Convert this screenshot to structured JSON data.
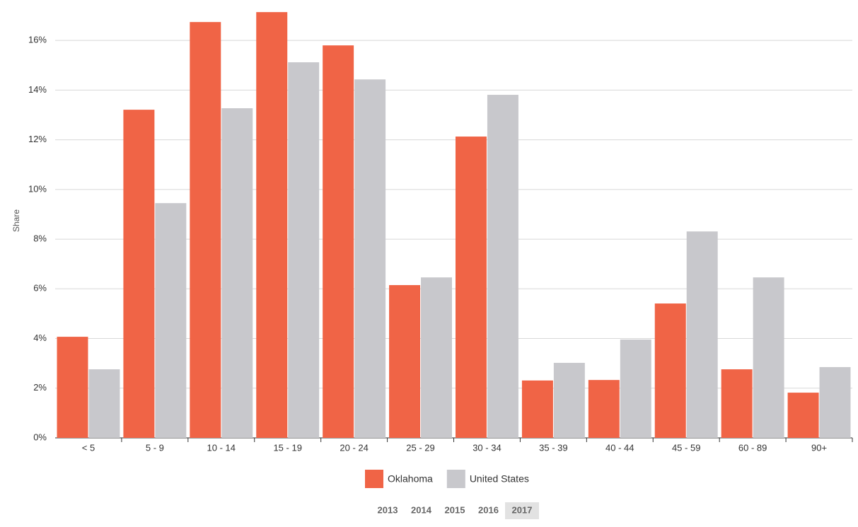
{
  "chart_data": {
    "type": "bar",
    "y_label": "Share",
    "categories": [
      "< 5",
      "5 - 9",
      "10 - 14",
      "15 - 19",
      "20 - 24",
      "25 - 29",
      "30 - 34",
      "35 - 39",
      "40 - 44",
      "45 - 59",
      "60 - 89",
      "90+"
    ],
    "series": [
      {
        "name": "Oklahoma",
        "color": "#f06446",
        "values": [
          4.07,
          13.21,
          16.74,
          17.14,
          15.8,
          6.15,
          12.13,
          2.31,
          2.33,
          5.41,
          2.76,
          1.82
        ]
      },
      {
        "name": "United States",
        "color": "#c8c8cc",
        "values": [
          2.76,
          9.45,
          13.27,
          15.12,
          14.43,
          6.46,
          13.81,
          3.02,
          3.96,
          8.31,
          6.46,
          2.85
        ]
      }
    ],
    "ylim": [
      0,
      17.2
    ],
    "yticks": [
      {
        "value": 0,
        "label": "0%"
      },
      {
        "value": 2,
        "label": "2%"
      },
      {
        "value": 4,
        "label": "4%"
      },
      {
        "value": 6,
        "label": "6%"
      },
      {
        "value": 8,
        "label": "8%"
      },
      {
        "value": 10,
        "label": "10%"
      },
      {
        "value": 12,
        "label": "12%"
      },
      {
        "value": 14,
        "label": "14%"
      },
      {
        "value": 16,
        "label": "16%"
      }
    ],
    "grid": true
  },
  "year_options": [
    "2013",
    "2014",
    "2015",
    "2016",
    "2017"
  ],
  "selected_year_index": 4
}
